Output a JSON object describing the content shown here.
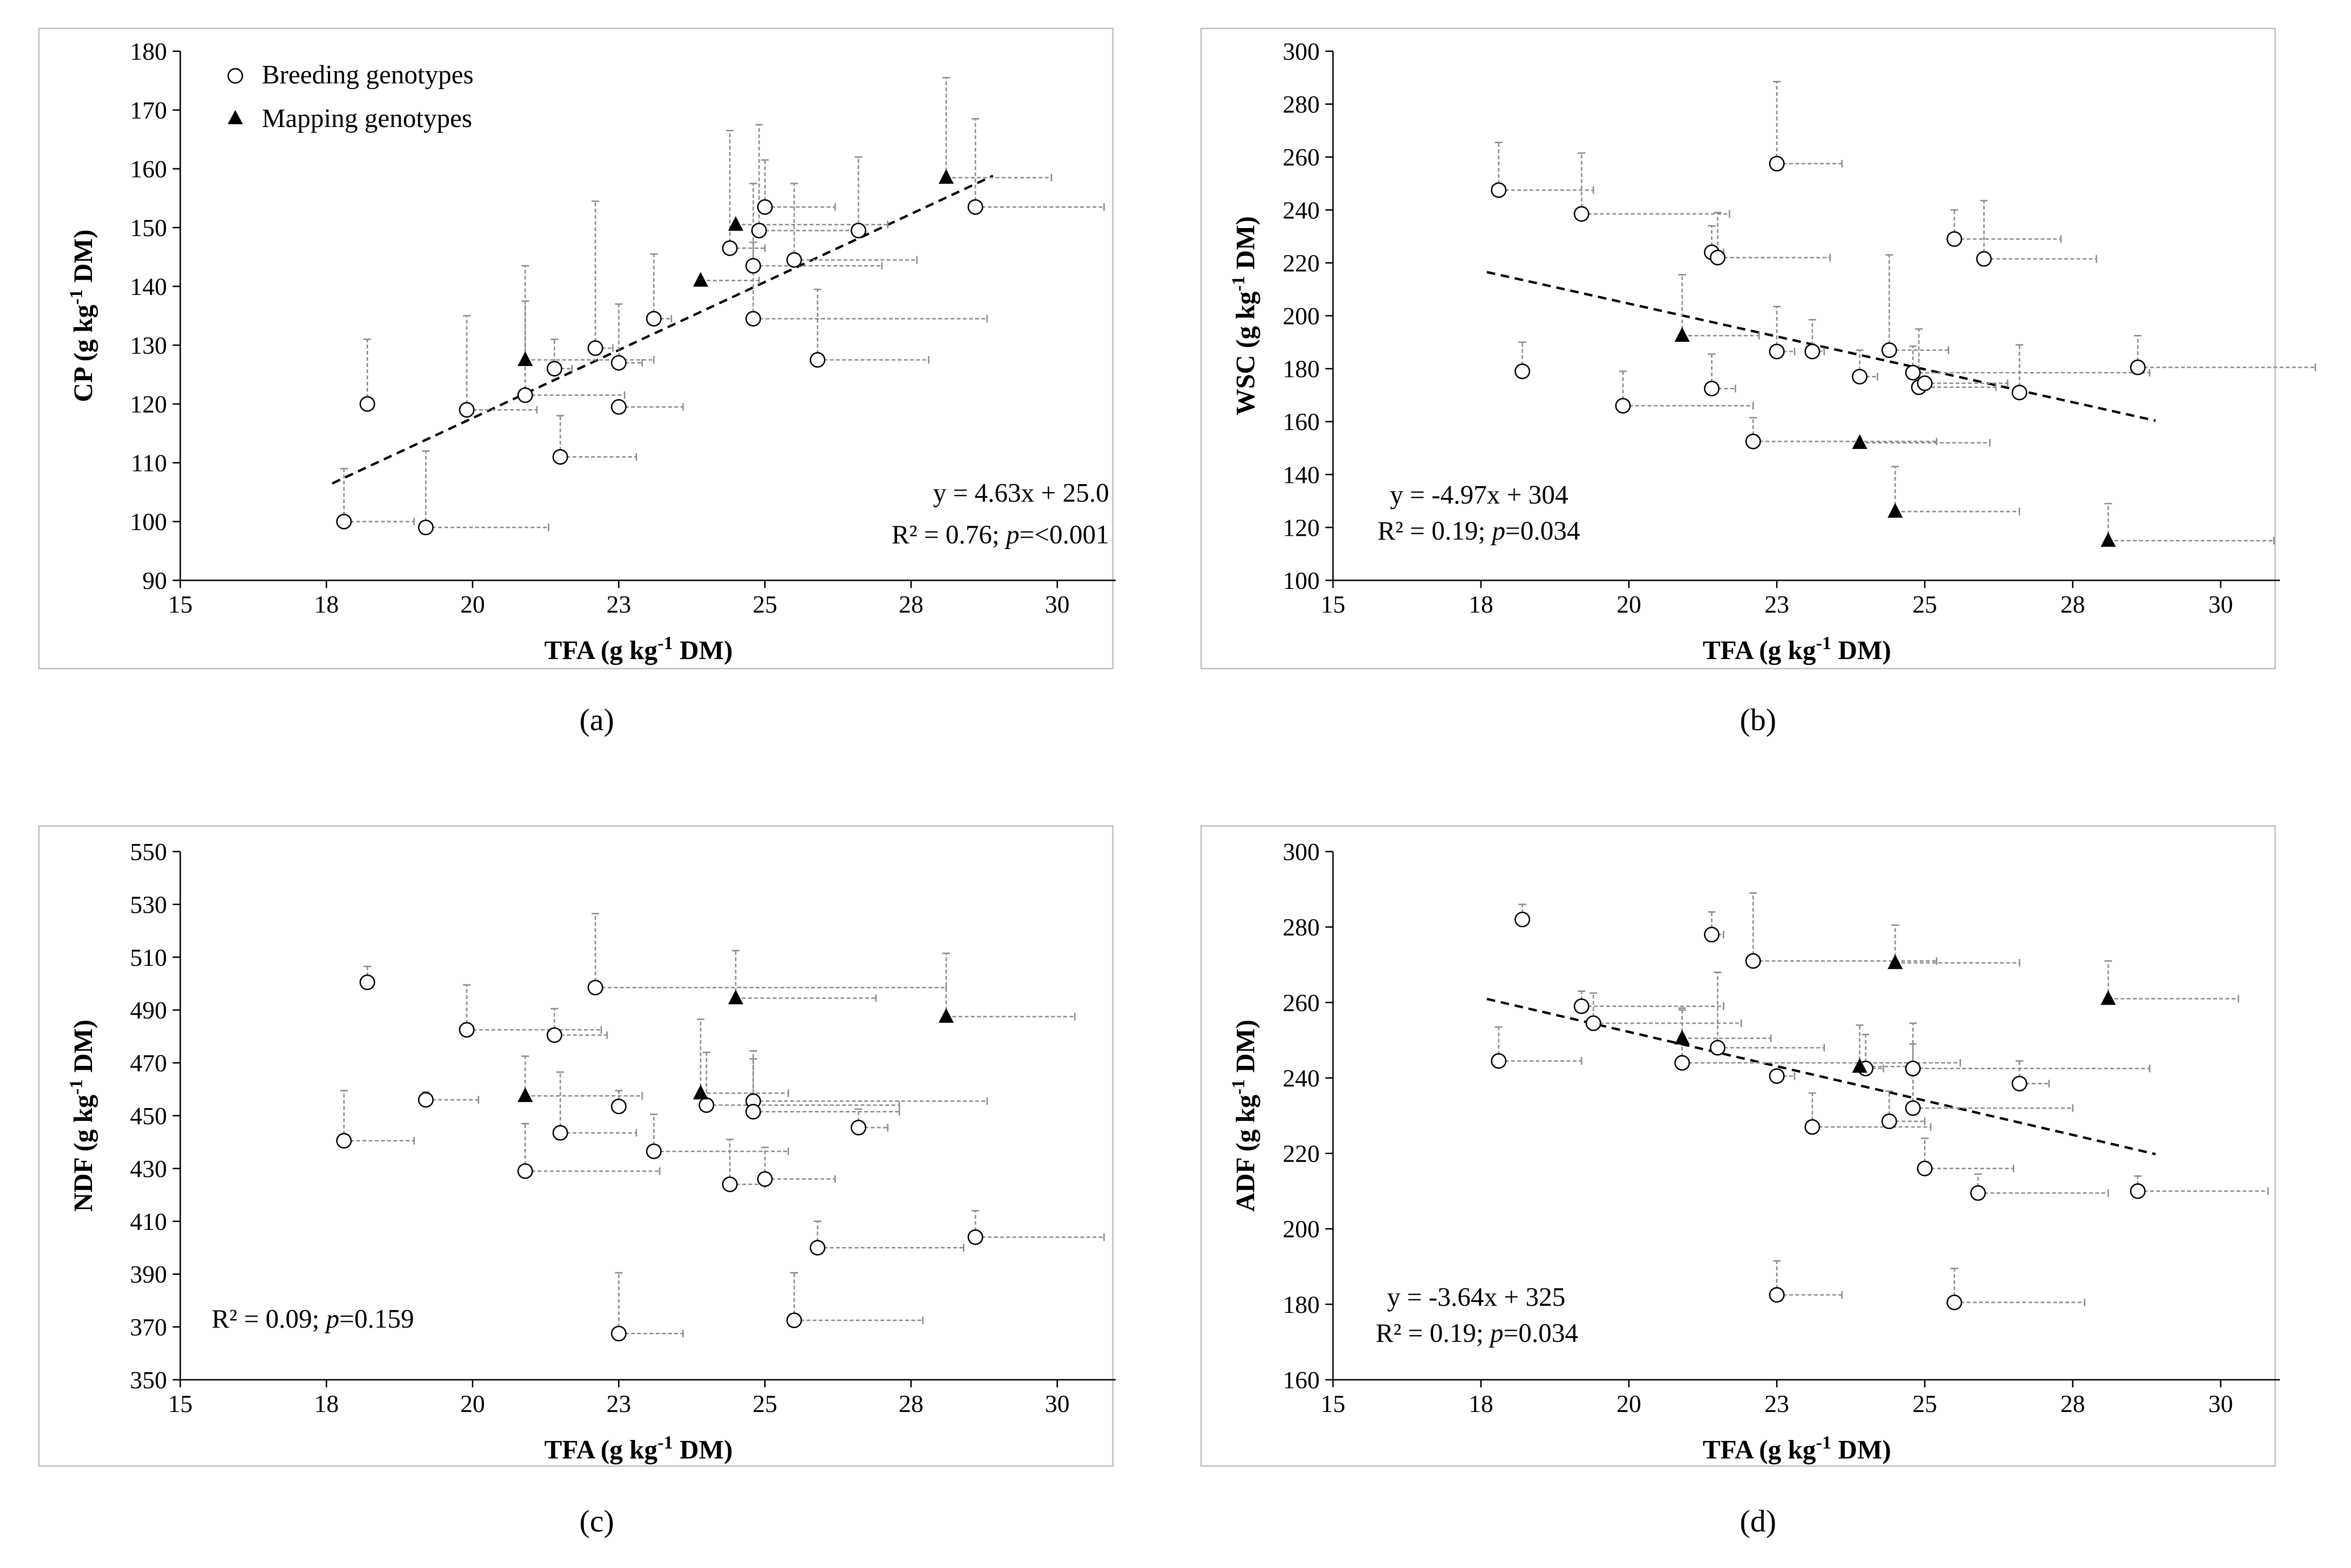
{
  "figure": {
    "panel_labels": [
      "(a)",
      "(b)",
      "(c)",
      "(d)"
    ]
  },
  "colors": {
    "axis": "#000000",
    "errorbar": "#8c8c8c",
    "frame": "#bfbfbf",
    "trendline": "#000000"
  },
  "chart_data": [
    {
      "type": "scatter",
      "panel": "(a)",
      "xlabel": "TFA (g kg⁻¹ DM)",
      "ylabel": "CP (g kg⁻¹ DM)",
      "xlim": [
        15,
        31
      ],
      "ylim": [
        90,
        180
      ],
      "xticks": [
        15,
        18,
        20,
        23,
        25,
        28,
        30
      ],
      "yticks": [
        90,
        100,
        110,
        120,
        130,
        140,
        150,
        160,
        170,
        180
      ],
      "legend": {
        "position": "top-left",
        "entries": [
          "Breeding genotypes",
          "Mapping genotypes"
        ]
      },
      "trendline": {
        "x_range": [
          17.6,
          28.9
        ],
        "slope": 4.63,
        "intercept": 25.0
      },
      "annotation": [
        "y = 4.63x + 25.0",
        "R² = 0.76; p=<0.001"
      ],
      "series": [
        {
          "name": "Breeding genotypes",
          "marker": "circle",
          "points": [
            {
              "x": 17.8,
              "y": 100,
              "xerr": 1.2,
              "yerr": 9
            },
            {
              "x": 18.2,
              "y": 120,
              "xerr": 0,
              "yerr": 11
            },
            {
              "x": 19.2,
              "y": 99,
              "xerr": 2.1,
              "yerr": 13
            },
            {
              "x": 19.9,
              "y": 119,
              "xerr": 1.2,
              "yerr": 16
            },
            {
              "x": 20.9,
              "y": 121.5,
              "xerr": 1.7,
              "yerr": 16
            },
            {
              "x": 21.4,
              "y": 126,
              "xerr": 0.3,
              "yerr": 5
            },
            {
              "x": 21.5,
              "y": 111,
              "xerr": 1.3,
              "yerr": 7
            },
            {
              "x": 22.1,
              "y": 129.5,
              "xerr": 0.3,
              "yerr": 25
            },
            {
              "x": 22.5,
              "y": 119.5,
              "xerr": 1.1,
              "yerr": 0
            },
            {
              "x": 22.5,
              "y": 127,
              "xerr": 0.4,
              "yerr": 10
            },
            {
              "x": 23.1,
              "y": 134.5,
              "xerr": 0.3,
              "yerr": 11
            },
            {
              "x": 24.4,
              "y": 146.5,
              "xerr": 0.6,
              "yerr": 20
            },
            {
              "x": 24.9,
              "y": 149.5,
              "xerr": 1.8,
              "yerr": 18
            },
            {
              "x": 24.8,
              "y": 143.5,
              "xerr": 2.2,
              "yerr": 14
            },
            {
              "x": 24.8,
              "y": 134.5,
              "xerr": 4.0,
              "yerr": 13
            },
            {
              "x": 25.0,
              "y": 153.5,
              "xerr": 1.2,
              "yerr": 8
            },
            {
              "x": 25.5,
              "y": 144.5,
              "xerr": 2.1,
              "yerr": 13
            },
            {
              "x": 25.9,
              "y": 127.5,
              "xerr": 1.9,
              "yerr": 12
            },
            {
              "x": 26.6,
              "y": 149.5,
              "xerr": 0,
              "yerr": 12.5
            },
            {
              "x": 28.6,
              "y": 153.5,
              "xerr": 2.2,
              "yerr": 15
            }
          ]
        },
        {
          "name": "Mapping genotypes",
          "marker": "triangle",
          "points": [
            {
              "x": 20.9,
              "y": 127.5,
              "xerr": 2.2,
              "yerr": 16
            },
            {
              "x": 23.9,
              "y": 141,
              "xerr": 1.0,
              "yerr": 0
            },
            {
              "x": 24.5,
              "y": 150.5,
              "xerr": 2.6,
              "yerr": 0
            },
            {
              "x": 28.1,
              "y": 158.5,
              "xerr": 1.8,
              "yerr": 17
            }
          ]
        }
      ]
    },
    {
      "type": "scatter",
      "panel": "(b)",
      "xlabel": "TFA (g kg⁻¹ DM)",
      "ylabel": "WSC (g kg⁻¹ DM)",
      "xlim": [
        15,
        31
      ],
      "ylim": [
        100,
        300
      ],
      "xticks": [
        15,
        18,
        20,
        23,
        25,
        28,
        30
      ],
      "yticks": [
        100,
        120,
        140,
        160,
        180,
        200,
        220,
        240,
        260,
        280,
        300
      ],
      "trendline": {
        "x_range": [
          17.6,
          28.9
        ],
        "slope": -4.97,
        "intercept": 304
      },
      "annotation": [
        "y = -4.97x + 304",
        "R² = 0.19; p=0.034"
      ],
      "series": [
        {
          "name": "Breeding genotypes",
          "marker": "circle",
          "points": [
            {
              "x": 17.8,
              "y": 247.5,
              "xerr": 1.6,
              "yerr": 18
            },
            {
              "x": 18.2,
              "y": 179,
              "xerr": 0,
              "yerr": 11
            },
            {
              "x": 19.2,
              "y": 238.5,
              "xerr": 2.5,
              "yerr": 23
            },
            {
              "x": 19.9,
              "y": 166,
              "xerr": 2.2,
              "yerr": 13
            },
            {
              "x": 21.4,
              "y": 224,
              "xerr": 0.2,
              "yerr": 10
            },
            {
              "x": 21.4,
              "y": 172.5,
              "xerr": 0.4,
              "yerr": 13
            },
            {
              "x": 21.5,
              "y": 222,
              "xerr": 1.9,
              "yerr": 17
            },
            {
              "x": 22.1,
              "y": 152.5,
              "xerr": 3.1,
              "yerr": 9
            },
            {
              "x": 22.5,
              "y": 257.5,
              "xerr": 1.1,
              "yerr": 31
            },
            {
              "x": 22.5,
              "y": 186.5,
              "xerr": 0.3,
              "yerr": 17
            },
            {
              "x": 23.1,
              "y": 186.5,
              "xerr": 0.2,
              "yerr": 12
            },
            {
              "x": 23.9,
              "y": 177,
              "xerr": 0.3,
              "yerr": 10
            },
            {
              "x": 24.4,
              "y": 187,
              "xerr": 1.0,
              "yerr": 36
            },
            {
              "x": 24.8,
              "y": 178.5,
              "xerr": 4.0,
              "yerr": 10
            },
            {
              "x": 24.9,
              "y": 173,
              "xerr": 1.3,
              "yerr": 22
            },
            {
              "x": 25.0,
              "y": 174.5,
              "xerr": 1.4,
              "yerr": 0
            },
            {
              "x": 25.5,
              "y": 229,
              "xerr": 1.8,
              "yerr": 11
            },
            {
              "x": 26.0,
              "y": 221.5,
              "xerr": 1.9,
              "yerr": 22
            },
            {
              "x": 26.6,
              "y": 171,
              "xerr": 0,
              "yerr": 18
            },
            {
              "x": 28.6,
              "y": 180.5,
              "xerr": 3.0,
              "yerr": 12
            }
          ]
        },
        {
          "name": "Mapping genotypes",
          "marker": "triangle",
          "points": [
            {
              "x": 20.9,
              "y": 192.5,
              "xerr": 1.3,
              "yerr": 23
            },
            {
              "x": 23.9,
              "y": 152,
              "xerr": 2.2,
              "yerr": 0
            },
            {
              "x": 24.5,
              "y": 126,
              "xerr": 2.1,
              "yerr": 17
            },
            {
              "x": 28.1,
              "y": 115,
              "xerr": 2.8,
              "yerr": 14
            }
          ]
        }
      ]
    },
    {
      "type": "scatter",
      "panel": "(c)",
      "xlabel": "TFA (g kg⁻¹ DM)",
      "ylabel": "NDF (g kg⁻¹ DM)",
      "xlim": [
        15,
        31
      ],
      "ylim": [
        350,
        550
      ],
      "xticks": [
        15,
        18,
        20,
        23,
        25,
        28,
        30
      ],
      "yticks": [
        350,
        370,
        390,
        410,
        430,
        450,
        470,
        490,
        510,
        530,
        550
      ],
      "annotation": [
        "R² = 0.09; p=0.159"
      ],
      "series": [
        {
          "name": "Breeding genotypes",
          "marker": "circle",
          "points": [
            {
              "x": 17.8,
              "y": 440.5,
              "xerr": 1.2,
              "yerr": 19
            },
            {
              "x": 18.2,
              "y": 500.5,
              "xerr": 0,
              "yerr": 6
            },
            {
              "x": 19.2,
              "y": 456,
              "xerr": 0.9,
              "yerr": 3
            },
            {
              "x": 19.9,
              "y": 482.5,
              "xerr": 2.3,
              "yerr": 17
            },
            {
              "x": 20.9,
              "y": 429,
              "xerr": 2.3,
              "yerr": 18
            },
            {
              "x": 21.4,
              "y": 480.5,
              "xerr": 0.9,
              "yerr": 10
            },
            {
              "x": 21.5,
              "y": 443.5,
              "xerr": 1.3,
              "yerr": 23
            },
            {
              "x": 22.1,
              "y": 498.5,
              "xerr": 6.0,
              "yerr": 28
            },
            {
              "x": 22.5,
              "y": 367.5,
              "xerr": 1.1,
              "yerr": 23
            },
            {
              "x": 22.5,
              "y": 453.5,
              "xerr": 0.1,
              "yerr": 6
            },
            {
              "x": 23.1,
              "y": 436.5,
              "xerr": 2.3,
              "yerr": 14
            },
            {
              "x": 24.0,
              "y": 454,
              "xerr": 3.3,
              "yerr": 20
            },
            {
              "x": 24.4,
              "y": 424,
              "xerr": 0.6,
              "yerr": 17
            },
            {
              "x": 24.8,
              "y": 455.5,
              "xerr": 4.0,
              "yerr": 19
            },
            {
              "x": 24.8,
              "y": 451.5,
              "xerr": 2.5,
              "yerr": 20
            },
            {
              "x": 25.0,
              "y": 426,
              "xerr": 1.2,
              "yerr": 12
            },
            {
              "x": 25.5,
              "y": 372.5,
              "xerr": 2.2,
              "yerr": 18
            },
            {
              "x": 25.9,
              "y": 400,
              "xerr": 2.5,
              "yerr": 10
            },
            {
              "x": 26.6,
              "y": 445.5,
              "xerr": 0.5,
              "yerr": 7
            },
            {
              "x": 28.6,
              "y": 404,
              "xerr": 2.2,
              "yerr": 10
            }
          ]
        },
        {
          "name": "Mapping genotypes",
          "marker": "triangle",
          "points": [
            {
              "x": 20.9,
              "y": 457.5,
              "xerr": 2.0,
              "yerr": 15
            },
            {
              "x": 23.9,
              "y": 458.5,
              "xerr": 1.5,
              "yerr": 28
            },
            {
              "x": 24.5,
              "y": 494.5,
              "xerr": 2.4,
              "yerr": 18
            },
            {
              "x": 28.1,
              "y": 487.5,
              "xerr": 2.2,
              "yerr": 24
            }
          ]
        }
      ]
    },
    {
      "type": "scatter",
      "panel": "(d)",
      "xlabel": "TFA (g kg⁻¹ DM)",
      "ylabel": "ADF (g kg⁻¹ DM)",
      "xlim": [
        15,
        31
      ],
      "ylim": [
        160,
        300
      ],
      "xticks": [
        15,
        18,
        20,
        23,
        25,
        28,
        30
      ],
      "yticks": [
        160,
        180,
        200,
        220,
        240,
        260,
        280,
        300
      ],
      "trendline": {
        "x_range": [
          17.6,
          28.9
        ],
        "slope": -3.64,
        "intercept": 325
      },
      "annotation": [
        "y = -3.64x + 325",
        "R² = 0.19; p=0.034"
      ],
      "series": [
        {
          "name": "Breeding genotypes",
          "marker": "circle",
          "points": [
            {
              "x": 17.8,
              "y": 244.5,
              "xerr": 1.4,
              "yerr": 9
            },
            {
              "x": 18.2,
              "y": 282,
              "xerr": 0,
              "yerr": 4
            },
            {
              "x": 19.2,
              "y": 259,
              "xerr": 2.4,
              "yerr": 4
            },
            {
              "x": 19.4,
              "y": 254.5,
              "xerr": 2.5,
              "yerr": 8
            },
            {
              "x": 20.9,
              "y": 244,
              "xerr": 4.7,
              "yerr": 14
            },
            {
              "x": 21.4,
              "y": 278,
              "xerr": 0.2,
              "yerr": 6
            },
            {
              "x": 21.5,
              "y": 248,
              "xerr": 1.8,
              "yerr": 20
            },
            {
              "x": 22.1,
              "y": 271,
              "xerr": 3.1,
              "yerr": 18
            },
            {
              "x": 22.5,
              "y": 182.5,
              "xerr": 1.1,
              "yerr": 9
            },
            {
              "x": 22.5,
              "y": 240.5,
              "xerr": 0.3,
              "yerr": 0
            },
            {
              "x": 23.1,
              "y": 227,
              "xerr": 2.0,
              "yerr": 9
            },
            {
              "x": 24.0,
              "y": 242.5,
              "xerr": 0.3,
              "yerr": 9
            },
            {
              "x": 24.4,
              "y": 228.5,
              "xerr": 0.6,
              "yerr": 8
            },
            {
              "x": 24.8,
              "y": 242.5,
              "xerr": 4.0,
              "yerr": 12
            },
            {
              "x": 24.8,
              "y": 232,
              "xerr": 2.7,
              "yerr": 17
            },
            {
              "x": 25.0,
              "y": 216,
              "xerr": 1.5,
              "yerr": 8
            },
            {
              "x": 25.5,
              "y": 180.5,
              "xerr": 2.2,
              "yerr": 9
            },
            {
              "x": 25.9,
              "y": 209.5,
              "xerr": 2.2,
              "yerr": 5
            },
            {
              "x": 26.6,
              "y": 238.5,
              "xerr": 0.5,
              "yerr": 6
            },
            {
              "x": 28.6,
              "y": 210,
              "xerr": 2.2,
              "yerr": 4
            }
          ]
        },
        {
          "name": "Mapping genotypes",
          "marker": "triangle",
          "points": [
            {
              "x": 20.9,
              "y": 250.5,
              "xerr": 1.5,
              "yerr": 8
            },
            {
              "x": 23.9,
              "y": 243,
              "xerr": 1.0,
              "yerr": 11
            },
            {
              "x": 24.5,
              "y": 270.5,
              "xerr": 2.1,
              "yerr": 10
            },
            {
              "x": 28.1,
              "y": 261,
              "xerr": 2.2,
              "yerr": 10
            }
          ]
        }
      ]
    }
  ]
}
